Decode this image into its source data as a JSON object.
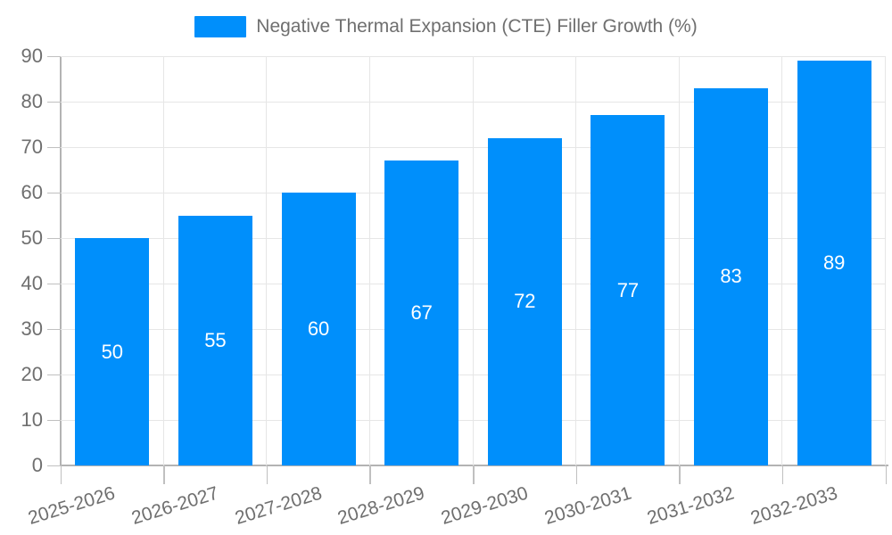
{
  "chart_data": {
    "type": "bar",
    "legend": "Negative Thermal Expansion (CTE) Filler Growth (%)",
    "legend_position": "top",
    "categories": [
      "2025-2026",
      "2026-2027",
      "2027-2028",
      "2028-2029",
      "2029-2030",
      "2030-2031",
      "2031-2032",
      "2032-2033"
    ],
    "values": [
      50,
      55,
      60,
      67,
      72,
      77,
      83,
      89
    ],
    "yticks": [
      0,
      10,
      20,
      30,
      40,
      50,
      60,
      70,
      80,
      90
    ],
    "ylim": [
      0,
      90
    ],
    "grid": true,
    "xlabel": "",
    "ylabel": "",
    "colors": {
      "bar": "#008FFB",
      "value_label": "#ffffff",
      "axis_label": "#6f6f6f",
      "legend_text": "#6f6f6f",
      "gridline": "#e6e6e6",
      "axis_line": "#b3b3b3",
      "tick": "#c0c0c0",
      "background": "#ffffff"
    }
  }
}
